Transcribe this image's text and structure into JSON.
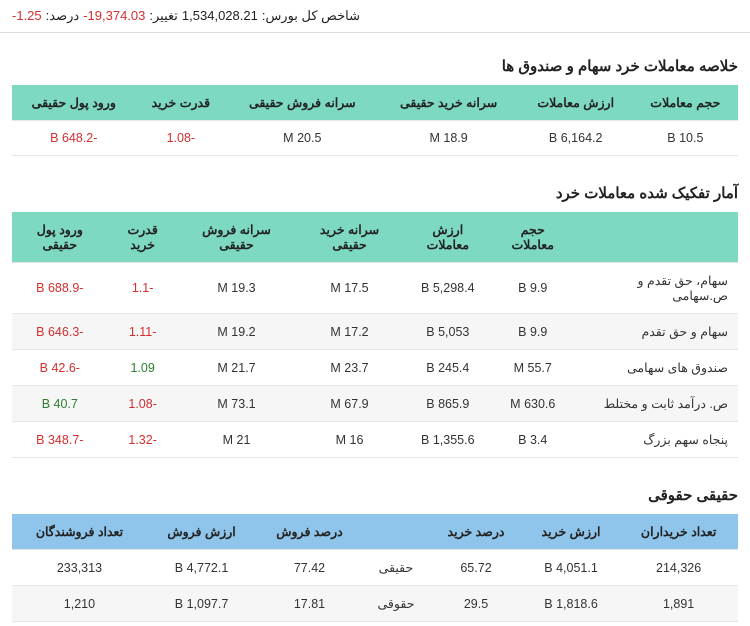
{
  "header": {
    "index_label": "شاخص کل بورس:",
    "index_value": "1,534,028.21",
    "change_label": "تغییر:",
    "change_value": "19,374.03-",
    "percent_label": "درصد:",
    "percent_value": "1.25-"
  },
  "summary": {
    "title": "خلاصه معاملات خرد سهام و صندوق ها",
    "columns": [
      "حجم معاملات",
      "ارزش معاملات",
      "سرانه خرید حقیقی",
      "سرانه فروش حقیقی",
      "قدرت خرید",
      "ورود پول حقیقی"
    ],
    "row": {
      "vol": "10.5 B",
      "val": "6,164.2 B",
      "buy_per": "18.9 M",
      "sell_per": "20.5 M",
      "power": "-1.08",
      "inflow": "-648.2 B"
    },
    "header_color": "#7ed9c3"
  },
  "breakdown": {
    "title": "آمار تفکیک شده معاملات خرد",
    "columns": [
      "",
      "حجم معاملات",
      "ارزش معاملات",
      "سرانه خرید حقیقی",
      "سرانه فروش حقیقی",
      "قدرت خرید",
      "ورود پول حقیقی"
    ],
    "rows": [
      {
        "label": "سهام، حق تقدم و ص.سهامی",
        "vol": "9.9 B",
        "val": "5,298.4 B",
        "buy": "17.5 M",
        "sell": "19.3 M",
        "power": "-1.1",
        "power_neg": true,
        "inflow": "-688.9 B",
        "inflow_neg": true
      },
      {
        "label": "سهام و حق تقدم",
        "vol": "9.9 B",
        "val": "5,053 B",
        "buy": "17.2 M",
        "sell": "19.2 M",
        "power": "-1.11",
        "power_neg": true,
        "inflow": "-646.3 B",
        "inflow_neg": true
      },
      {
        "label": "صندوق های سهامی",
        "vol": "55.7 M",
        "val": "245.4 B",
        "buy": "23.7 M",
        "sell": "21.7 M",
        "power": "1.09",
        "power_neg": false,
        "inflow": "-42.6 B",
        "inflow_neg": true
      },
      {
        "label": "ص. درآمد ثابت و مختلط",
        "vol": "630.6 M",
        "val": "865.9 B",
        "buy": "67.9 M",
        "sell": "73.1 M",
        "power": "-1.08",
        "power_neg": true,
        "inflow": "40.7 B",
        "inflow_neg": false
      },
      {
        "label": "پنجاه سهم بزرگ",
        "vol": "3.4 B",
        "val": "1,355.6 B",
        "buy": "16 M",
        "sell": "21 M",
        "power": "-1.32",
        "power_neg": true,
        "inflow": "-348.7 B",
        "inflow_neg": true
      }
    ],
    "header_color": "#7ed9c3"
  },
  "persons": {
    "title": "حقیقی حقوقی",
    "columns": [
      "تعداد خریداران",
      "ارزش خرید",
      "درصد خرید",
      "",
      "درصد فروش",
      "ارزش فروش",
      "تعداد فروشندگان"
    ],
    "rows": [
      {
        "buyers": "214,326",
        "buy_val": "4,051.1 B",
        "buy_pct": "65.72",
        "label": "حقیقی",
        "sell_pct": "77.42",
        "sell_val": "4,772.1 B",
        "sellers": "233,313"
      },
      {
        "buyers": "1,891",
        "buy_val": "1,818.6 B",
        "buy_pct": "29.5",
        "label": "حقوقی",
        "sell_pct": "17.81",
        "sell_val": "1,097.7 B",
        "sellers": "1,210"
      }
    ],
    "header_color": "#8fc5ea"
  }
}
